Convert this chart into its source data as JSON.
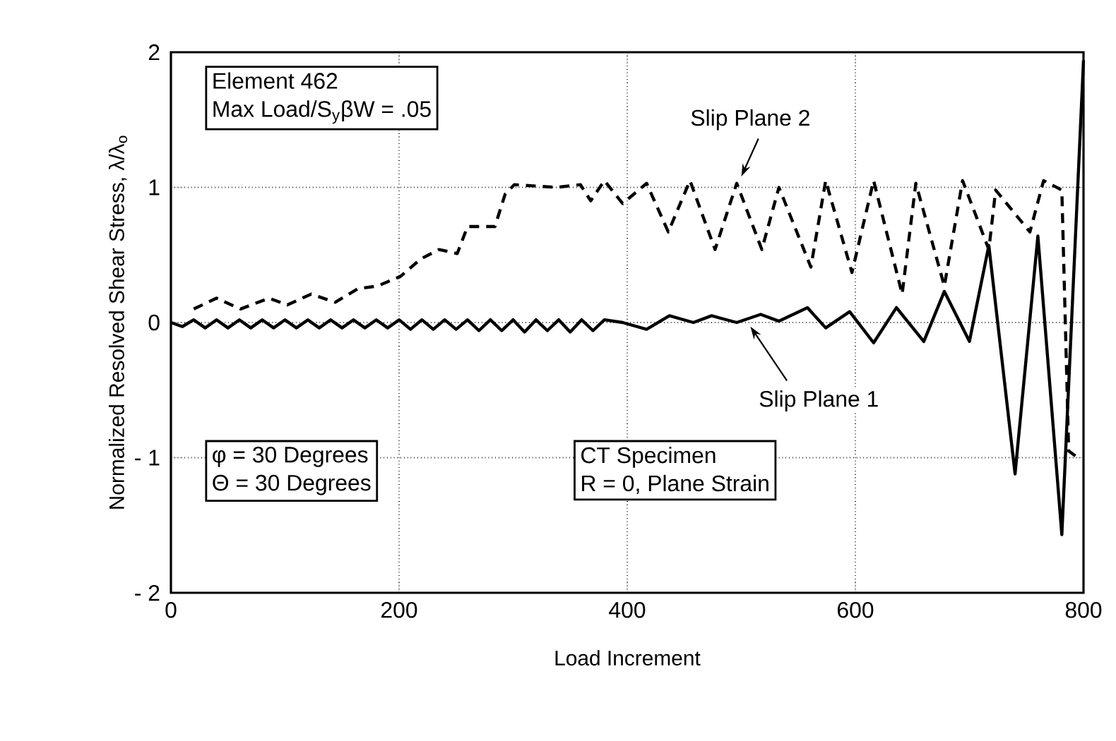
{
  "chart_data": {
    "type": "line",
    "xlabel": "Load Increment",
    "ylabel": "Normalized Resolved Shear Stress, λ/λ$_{o}$",
    "xlim": [
      0,
      800
    ],
    "ylim": [
      -2,
      2
    ],
    "xticks": [
      0,
      200,
      400,
      600,
      800
    ],
    "yticks": [
      {
        "value": -2,
        "label": "- 2"
      },
      {
        "value": -1,
        "label": "- 1"
      },
      0,
      1,
      2
    ],
    "grid": true,
    "series": [
      {
        "name": "Slip Plane 1",
        "color": "#000000",
        "line_style": "solid",
        "x": [
          0,
          10,
          20,
          30,
          40,
          50,
          60,
          70,
          80,
          90,
          100,
          110,
          120,
          130,
          140,
          150,
          160,
          170,
          180,
          190,
          200,
          210,
          220,
          230,
          240,
          250,
          260,
          270,
          280,
          290,
          300,
          310,
          320,
          330,
          340,
          350,
          360,
          370,
          380,
          396,
          417,
          437,
          458,
          474,
          496,
          517,
          533,
          558,
          574,
          595,
          616,
          636,
          660,
          678,
          700,
          717,
          740,
          760,
          781,
          800
        ],
        "values": [
          0,
          -0.03,
          0.02,
          -0.04,
          0.02,
          -0.04,
          0.02,
          -0.04,
          0.02,
          -0.04,
          0.02,
          -0.04,
          0.02,
          -0.04,
          0.02,
          -0.04,
          0.02,
          -0.04,
          0.02,
          -0.04,
          0.02,
          -0.05,
          0.02,
          -0.05,
          0.02,
          -0.05,
          0.02,
          -0.06,
          0.02,
          -0.06,
          0.02,
          -0.07,
          0.02,
          -0.06,
          0.02,
          -0.07,
          0.02,
          -0.06,
          0.02,
          0,
          -0.05,
          0.05,
          0,
          0.05,
          0,
          0.06,
          0.01,
          0.11,
          -0.04,
          0.08,
          -0.15,
          0.11,
          -0.14,
          0.23,
          -0.14,
          0.57,
          -1.12,
          0.64,
          -1.57,
          1.94
        ]
      },
      {
        "name": "Slip Plane 2",
        "color": "#000000",
        "line_style": "dashed",
        "x": [
          20,
          40,
          61,
          86,
          102,
          123,
          144,
          164,
          181,
          201,
          219,
          235,
          251,
          260,
          284,
          293,
          301,
          338,
          359,
          368,
          380,
          396,
          417,
          436,
          455,
          477,
          496,
          518,
          533,
          561,
          574,
          597,
          616,
          641,
          653,
          678,
          694,
          717,
          723,
          753,
          765,
          781,
          787,
          795
        ],
        "values": [
          0.1,
          0.18,
          0.1,
          0.18,
          0.13,
          0.21,
          0.15,
          0.25,
          0.27,
          0.34,
          0.47,
          0.54,
          0.51,
          0.71,
          0.71,
          0.95,
          1.02,
          1.0,
          1.02,
          0.9,
          1.05,
          0.88,
          1.03,
          0.67,
          1.05,
          0.54,
          1.03,
          0.54,
          1.0,
          0.41,
          1.05,
          0.37,
          1.05,
          0.21,
          1.03,
          0.27,
          1.05,
          0.54,
          0.98,
          0.67,
          1.05,
          0.98,
          -0.95,
          -1.0
        ]
      }
    ],
    "annotations": [
      "Element  462",
      "Max Load/S$_{y}$βW = .05",
      "φ = 30 Degrees",
      "Θ = 30 Degrees",
      "CT Specimen",
      "R = 0, Plane Strain"
    ]
  }
}
